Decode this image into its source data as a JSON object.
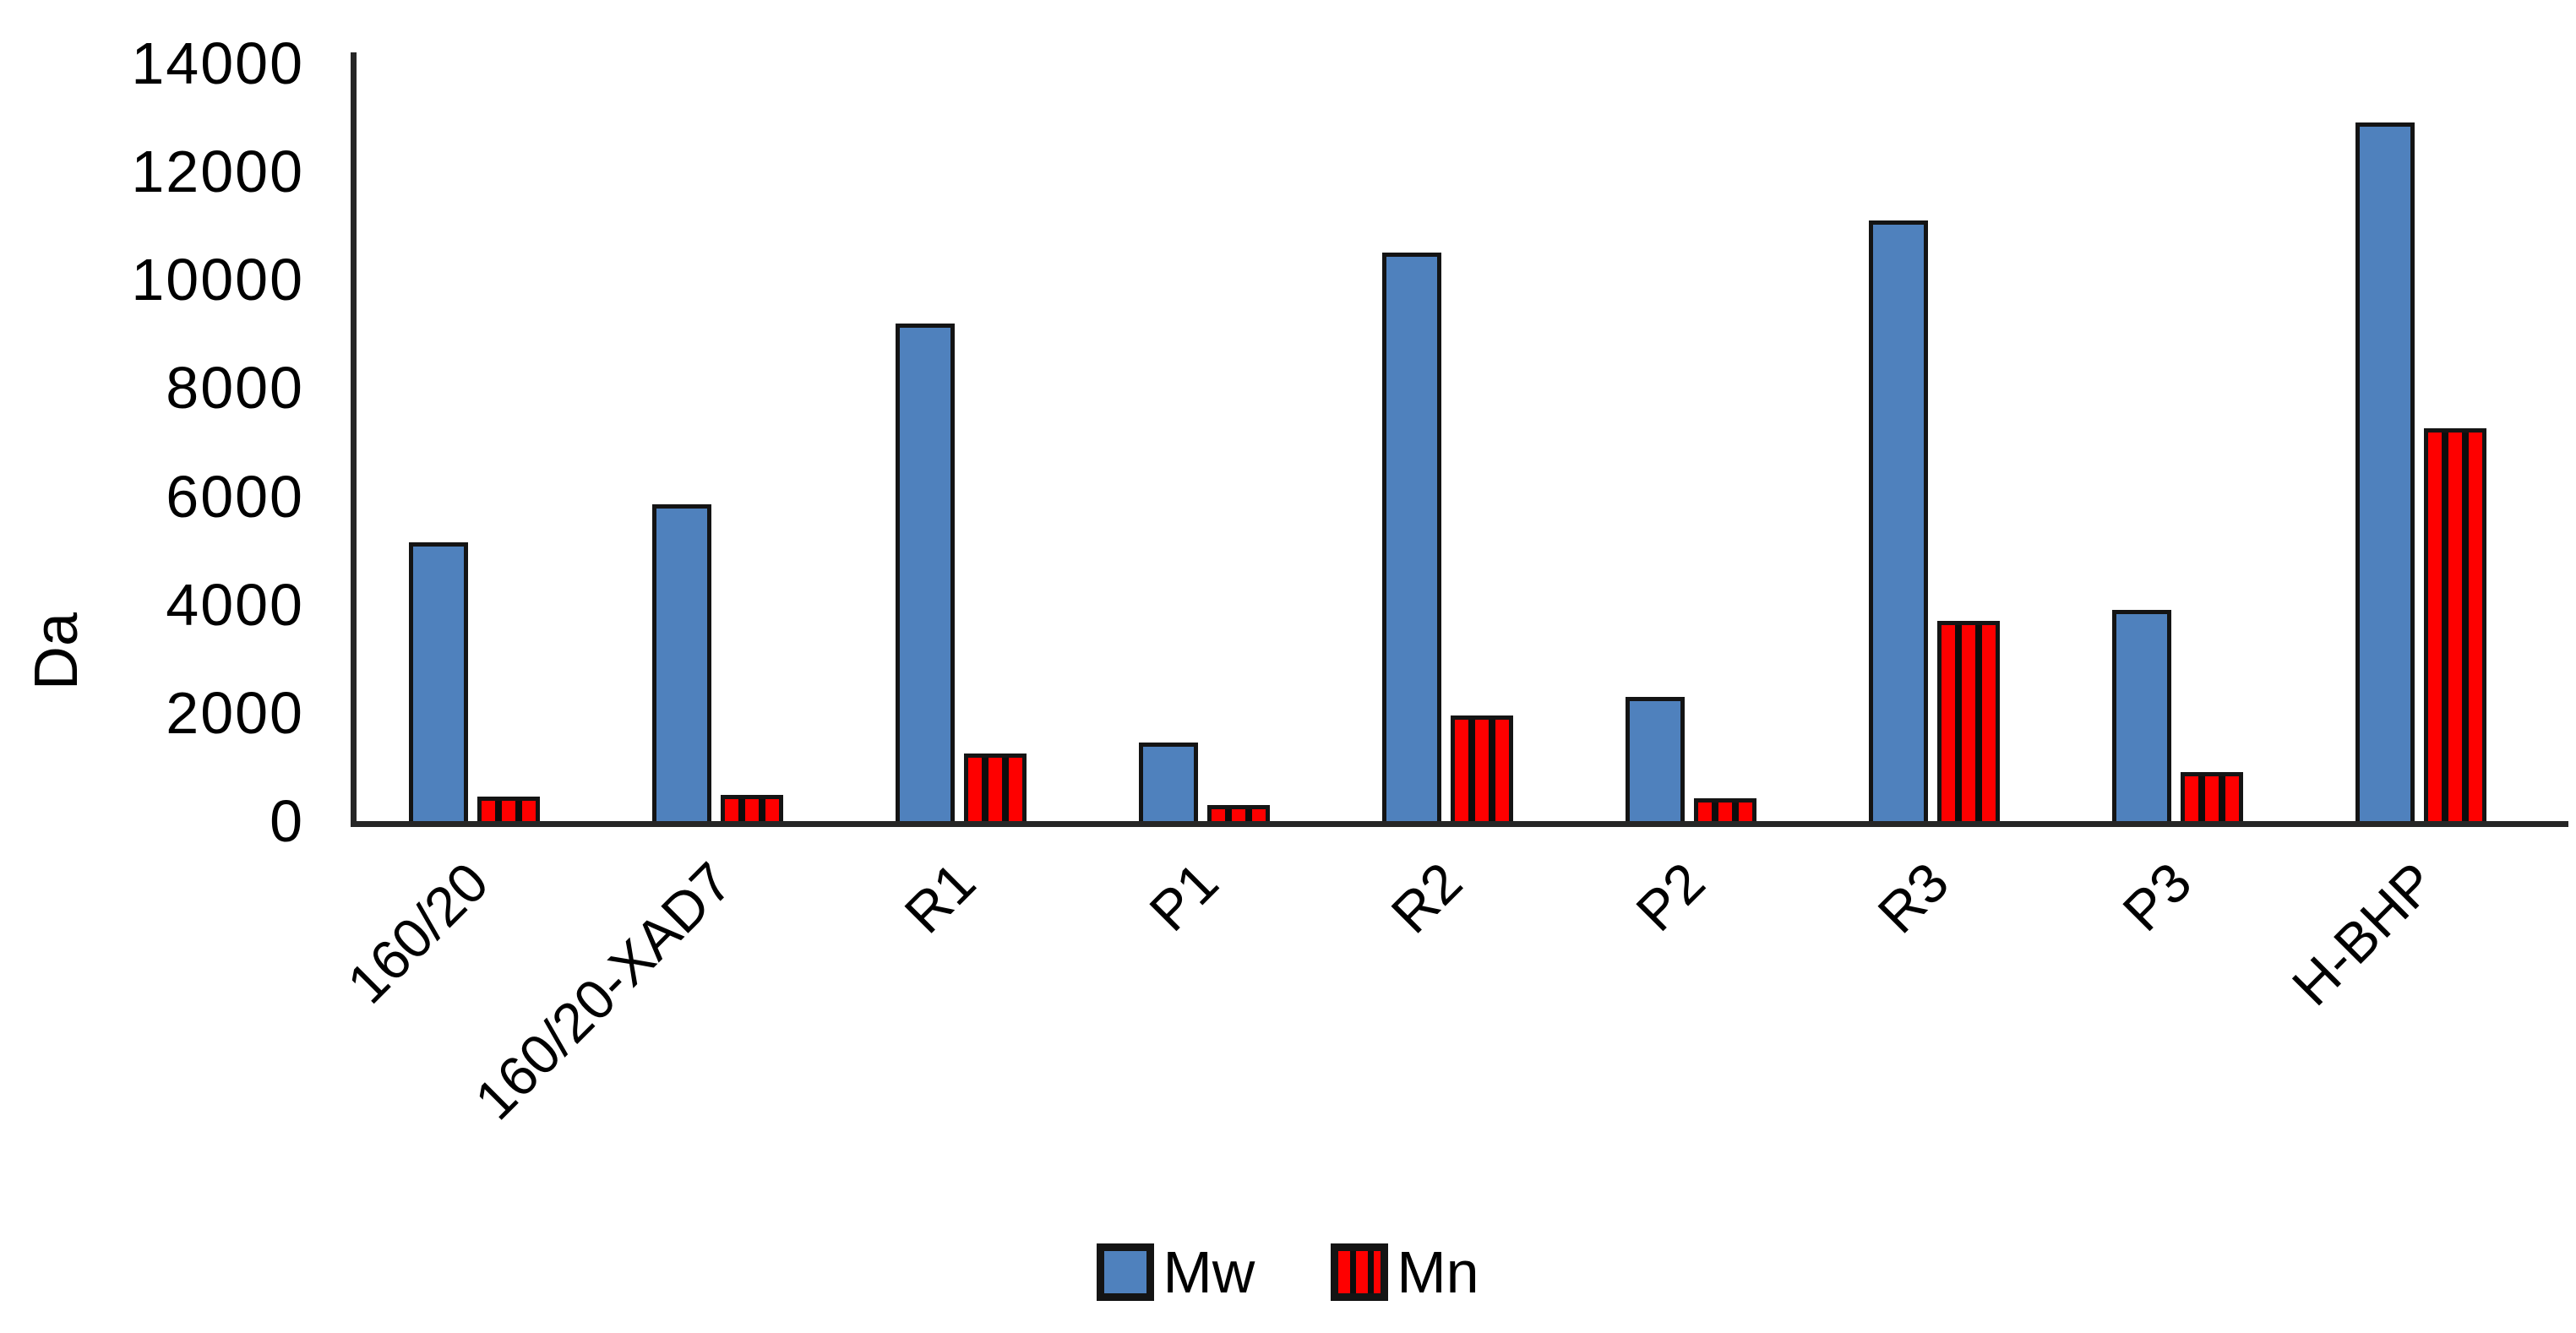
{
  "chart_data": {
    "type": "bar",
    "title": "",
    "xlabel": "",
    "ylabel": "Da",
    "ylim": [
      0,
      14000
    ],
    "ytick_step": 2000,
    "ytick_labels": [
      "0",
      "2000",
      "4000",
      "6000",
      "8000",
      "10000",
      "12000",
      "14000"
    ],
    "grid": false,
    "legend_position": "bottom-center",
    "categories": [
      "160/20",
      "160/20-XAD7",
      "R1",
      "P1",
      "R2",
      "P2",
      "R3",
      "P3",
      "H-BHP"
    ],
    "series": [
      {
        "name": "Mw",
        "color": "#4f81bd",
        "pattern": "solid",
        "values": [
          5150,
          5850,
          9200,
          1450,
          10500,
          2300,
          11100,
          3900,
          12900
        ]
      },
      {
        "name": "Mn",
        "color": "#fe0000",
        "pattern": "vertical-stripes",
        "stripe_color": "#0d0d0d",
        "values": [
          450,
          480,
          1250,
          300,
          1950,
          420,
          3700,
          900,
          7250
        ]
      }
    ],
    "outline_color": "#141414",
    "axis_color": "#262626"
  }
}
